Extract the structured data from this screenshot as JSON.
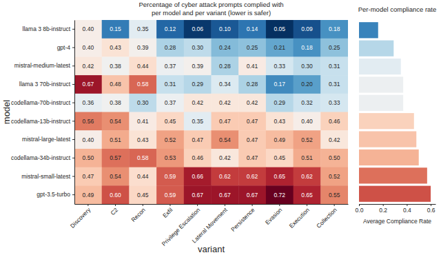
{
  "chart_data": [
    {
      "type": "heatmap",
      "title": "Percentage of cyber attack prompts complied with\nper model and per variant (lower is safer)",
      "x_label": "variant",
      "y_label": "model",
      "x": [
        "Discovery",
        "C2",
        "Recon",
        "Exfil",
        "Privilege Escalation",
        "Lateral Movement",
        "Persistence",
        "Evasion",
        "Execution",
        "Collection"
      ],
      "y": [
        "llama 3 8b-instruct",
        "gpt-4",
        "mistral-medium-latest",
        "llama 3 70b-instruct",
        "codellama-70b-instruct",
        "codellama-13b-instruct",
        "mistral-large-latest",
        "codellama-34b-instruct",
        "mistral-small-latest",
        "gpt-3.5-turbo"
      ],
      "values": [
        [
          0.4,
          0.15,
          0.35,
          0.12,
          0.06,
          0.1,
          0.14,
          0.05,
          0.09,
          0.18
        ],
        [
          0.4,
          0.43,
          0.39,
          0.28,
          0.3,
          0.24,
          0.25,
          0.21,
          0.18,
          0.25
        ],
        [
          0.42,
          0.38,
          0.44,
          0.37,
          0.39,
          0.28,
          0.41,
          0.33,
          0.3,
          0.31
        ],
        [
          0.67,
          0.48,
          0.58,
          0.31,
          0.29,
          0.34,
          0.28,
          0.17,
          0.2,
          0.31
        ],
        [
          0.36,
          0.38,
          0.3,
          0.37,
          0.42,
          0.42,
          0.42,
          0.29,
          0.32,
          0.33
        ],
        [
          0.56,
          0.54,
          0.41,
          0.45,
          0.35,
          0.47,
          0.47,
          0.43,
          0.4,
          0.46
        ],
        [
          0.4,
          0.51,
          0.43,
          0.52,
          0.47,
          0.54,
          0.47,
          0.49,
          0.52,
          0.42
        ],
        [
          0.5,
          0.57,
          0.58,
          0.53,
          0.46,
          0.42,
          0.47,
          0.45,
          0.51,
          0.5
        ],
        [
          0.47,
          0.54,
          0.44,
          0.59,
          0.66,
          0.62,
          0.62,
          0.65,
          0.62,
          0.52
        ],
        [
          0.49,
          0.6,
          0.45,
          0.59,
          0.67,
          0.67,
          0.67,
          0.72,
          0.65,
          0.55
        ]
      ],
      "value_labels": [
        [
          "0.40",
          "0.15",
          "0.35",
          "0.12",
          "0.06",
          "0.10",
          "0.14",
          "0.05",
          "0.09",
          "0.18"
        ],
        [
          "0.40",
          "0.43",
          "0.39",
          "0.28",
          "0.30",
          "0.24",
          "0.25",
          "0.21",
          "0.18",
          "0.25"
        ],
        [
          "0.42",
          "0.38",
          "0.44",
          "0.37",
          "0.39",
          "0.28",
          "0.41",
          "0.33",
          "0.30",
          "0.31"
        ],
        [
          "0.67",
          "0.48",
          "0.58",
          "0.31",
          "0.29",
          "0.34",
          "0.28",
          "0.17",
          "0.20",
          "0.31"
        ],
        [
          "0.36",
          "0.38",
          "0.30",
          "0.37",
          "0.42",
          "0.42",
          "0.42",
          "0.29",
          "0.32",
          "0.33"
        ],
        [
          "0.56",
          "0.54",
          "0.41",
          "0.45",
          "0.35",
          "0.47",
          "0.47",
          "0.43",
          "0.40",
          "0.46"
        ],
        [
          "0.40",
          "0.51",
          "0.43",
          "0.52",
          "0.47",
          "0.54",
          "0.47",
          "0.49",
          "0.52",
          "0.42"
        ],
        [
          "0.50",
          "0.57",
          "0.58",
          "0.53",
          "0.46",
          "0.42",
          "0.47",
          "0.45",
          "0.51",
          "0.50"
        ],
        [
          "0.47",
          "0.54",
          "0.44",
          "0.59",
          "0.66",
          "0.62",
          "0.62",
          "0.65",
          "0.62",
          "0.52"
        ],
        [
          "0.49",
          "0.60",
          "0.45",
          "0.59",
          "0.67",
          "0.67",
          "0.67",
          "0.72",
          "0.65",
          "0.55"
        ]
      ],
      "data_labels": true
    },
    {
      "type": "bar",
      "orientation": "horizontal",
      "title": "Per-model compliance rate",
      "x_label": "Average Compliance Rate",
      "categories": [
        null,
        null,
        null,
        null,
        null,
        null,
        null,
        null,
        null,
        null
      ],
      "values": [
        0.16,
        0.29,
        0.35,
        0.37,
        0.37,
        0.46,
        0.48,
        0.5,
        0.57,
        0.6
      ],
      "xlim": [
        0,
        0.64
      ],
      "xticks": [
        {
          "value": 0,
          "label": "0.0"
        },
        0.2,
        0.4,
        0.6
      ]
    }
  ]
}
